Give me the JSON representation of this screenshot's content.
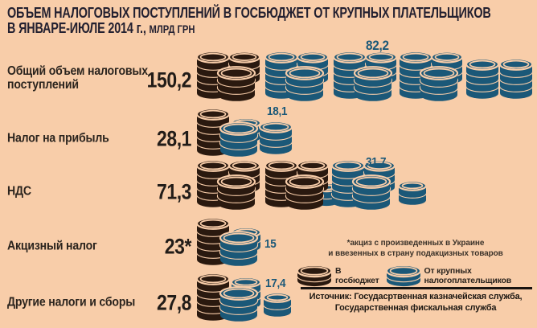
{
  "title": {
    "line1": "ОБЪЕМ НАЛОГОВЫХ ПОСТУПЛЕНИЙ В ГОСБЮДЖЕТ ОТ КРУПНЫХ ПЛАТЕЛЬЩИКОВ",
    "line2": "В ЯНВАРЕ-ИЮЛЕ 2014 г., ",
    "unit": "МЛРД ГРН"
  },
  "colors": {
    "background": "#f8cda9",
    "dark": "#2a190f",
    "blue": "#1b5878",
    "title_text": "#232030",
    "label_text": "#2b241e",
    "divider": "#181310"
  },
  "rows": [
    {
      "label": "Общий объем налоговых поступлений",
      "total": "150,2",
      "large": "82,2",
      "baseline": 68,
      "stacks": [
        [
          2,
          5,
          2,
          40,
          "d"
        ],
        [
          42,
          3,
          20,
          38,
          "d"
        ],
        [
          28,
          3,
          0,
          46,
          "d"
        ],
        [
          87,
          5,
          2,
          40,
          "b"
        ],
        [
          127,
          3,
          20,
          38,
          "b"
        ],
        [
          113,
          3,
          0,
          46,
          "b"
        ],
        [
          172,
          5,
          2,
          40,
          "b"
        ],
        [
          212,
          3,
          20,
          38,
          "b"
        ],
        [
          198,
          3,
          0,
          46,
          "b"
        ],
        [
          254,
          5,
          2,
          40,
          "b"
        ],
        [
          294,
          3,
          20,
          38,
          "b"
        ],
        [
          280,
          3,
          0,
          46,
          "b"
        ],
        [
          337,
          4,
          2,
          40,
          "b"
        ],
        [
          379,
          4,
          2,
          40,
          "b"
        ]
      ]
    },
    {
      "label": "Налог на прибыль",
      "total": "28,1",
      "large": "18,1",
      "baseline": 62,
      "stacks": [
        [
          2,
          5,
          0,
          40,
          "d"
        ],
        [
          45,
          2,
          16,
          36,
          "b"
        ],
        [
          31,
          3,
          0,
          46,
          "b"
        ],
        [
          80,
          3,
          2,
          40,
          "b"
        ]
      ]
    },
    {
      "label": "НДС",
      "total": "71,3",
      "large": "31,7",
      "baseline": 61,
      "stacks": [
        [
          2,
          5,
          2,
          40,
          "d"
        ],
        [
          42,
          3,
          20,
          38,
          "d"
        ],
        [
          28,
          3,
          0,
          46,
          "d"
        ],
        [
          148,
          2,
          2,
          30,
          "b"
        ],
        [
          87,
          5,
          2,
          40,
          "d"
        ],
        [
          127,
          3,
          20,
          38,
          "d"
        ],
        [
          113,
          3,
          0,
          46,
          "d"
        ],
        [
          170,
          5,
          2,
          40,
          "b"
        ],
        [
          210,
          3,
          20,
          38,
          "b"
        ],
        [
          196,
          3,
          0,
          46,
          "b"
        ],
        [
          253,
          2,
          4,
          34,
          "b"
        ]
      ]
    },
    {
      "label": "Акцизный налог",
      "total": "23*",
      "large": "15",
      "baseline": 65,
      "stacks": [
        [
          2,
          5,
          0,
          40,
          "d"
        ],
        [
          45,
          2,
          16,
          36,
          "b"
        ],
        [
          31,
          3,
          0,
          46,
          "b"
        ]
      ]
    },
    {
      "label": "Другие налоги и сборы",
      "total": "27,8",
      "large": "17,4",
      "baseline": 64,
      "stacks": [
        [
          2,
          5,
          0,
          40,
          "d"
        ],
        [
          45,
          3,
          14,
          36,
          "b"
        ],
        [
          31,
          3,
          0,
          46,
          "b"
        ],
        [
          85,
          2,
          4,
          34,
          "b"
        ]
      ]
    }
  ],
  "footnote": {
    "line1": "*акциз с произведенных в Украине",
    "line2": "и ввезенных в страну подакцизных товаров"
  },
  "legend": [
    {
      "label": "В госбюджет",
      "color_key": "dark",
      "icon": [
        0,
        2,
        0,
        42,
        "d",
        6
      ]
    },
    {
      "label": "От крупных налогоплательщиков",
      "color_key": "blue",
      "icon": [
        0,
        2,
        0,
        42,
        "b",
        6
      ]
    }
  ],
  "source": {
    "line1": "Источник: Госудасртвенная казначейская служба,",
    "line2": "Государственная фискальная служба"
  },
  "chart_data": {
    "type": "bar",
    "title": "ОБЪЕМ НАЛОГОВЫХ ПОСТУПЛЕНИЙ В ГОСБЮДЖЕТ ОТ КРУПНЫХ ПЛАТЕЛЬЩИКОВ В ЯНВАРЕ-ИЮЛЕ 2014 г.",
    "unit": "млрд грн",
    "categories": [
      "Общий объем налоговых поступлений",
      "Налог на прибыль",
      "НДС",
      "Акцизный налог",
      "Другие налоги и сборы"
    ],
    "series": [
      {
        "name": "В госбюджет",
        "color": "#2a190f",
        "values": [
          150.2,
          28.1,
          71.3,
          23,
          27.8
        ]
      },
      {
        "name": "От крупных налогоплательщиков",
        "color": "#1b5878",
        "values": [
          82.2,
          18.1,
          31.7,
          15,
          17.4
        ]
      }
    ],
    "annotations": [
      "*акциз с произведенных в Украине и ввезенных в страну подакцизных товаров"
    ],
    "legend_position": "bottom-right",
    "grid": false
  }
}
